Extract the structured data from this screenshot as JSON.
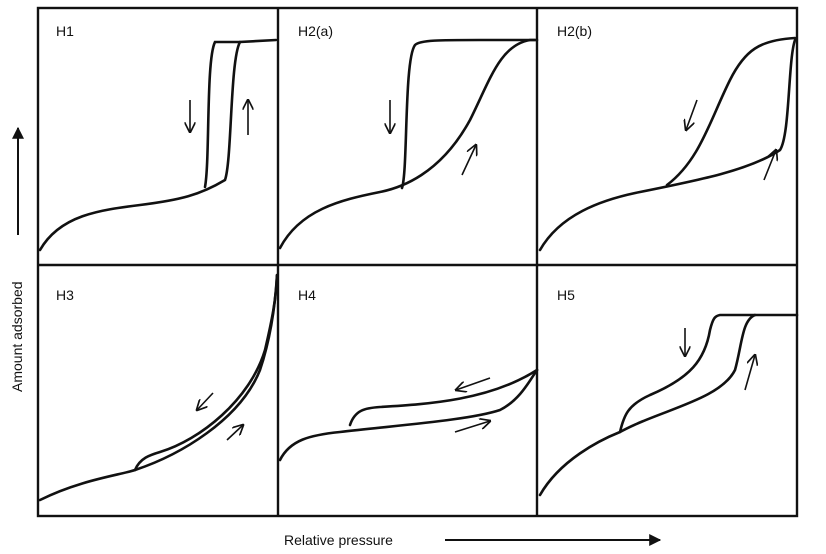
{
  "panels": [
    {
      "label": "H1"
    },
    {
      "label": "H2(a)"
    },
    {
      "label": "H2(b)"
    },
    {
      "label": "H3"
    },
    {
      "label": "H4"
    },
    {
      "label": "H5"
    }
  ],
  "y_axis_label": "Amount adsorbed",
  "x_axis_label": "Relative pressure"
}
